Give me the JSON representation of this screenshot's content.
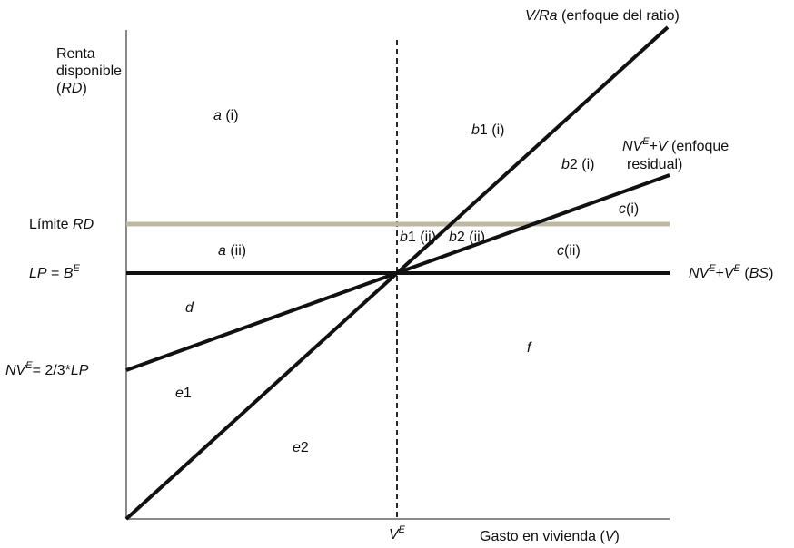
{
  "axes": {
    "y_title_line1": "Renta",
    "y_title_line2": "disponible",
    "y_title_line3_open": "(",
    "y_title_line3_var": "RD",
    "y_title_line3_close": ")",
    "x_title_text": "Gasto en vivienda (",
    "x_title_var": "V",
    "x_title_close": ")",
    "x_mark_var": "V",
    "x_mark_sup": "E"
  },
  "horizontal_labels": {
    "limite_text": "Límite ",
    "limite_var": "RD",
    "lp_var": "LP",
    "lp_eq": " = ",
    "lp_b": "B",
    "lp_sup": "E",
    "nve_var": "NV",
    "nve_sup": "E",
    "nve_rest_eq": "= 2/3*",
    "nve_rest_var": "LP"
  },
  "line_labels": {
    "ratio_var": "V/Ra",
    "ratio_text": " (enfoque del ratio)",
    "residual_nv": "NV",
    "residual_nv_sup": "E",
    "residual_plus": "+",
    "residual_v": "V",
    "residual_text1": " (enfoque",
    "residual_text2": "residual)",
    "bs_nv": "NV",
    "bs_nv_sup": "E",
    "bs_plus": "+",
    "bs_v": "V",
    "bs_v_sup": "E",
    "bs_open": " (",
    "bs_var": "BS",
    "bs_close": ")"
  },
  "regions": {
    "a_i_var": "a",
    "a_i_tag": " (i)",
    "a_ii_var": "a",
    "a_ii_tag": " (ii)",
    "b1_i_var": "b",
    "b1_i_tag": "1 (i)",
    "b2_i_var": "b",
    "b2_i_tag": "2 (i)",
    "c_i_var": "c",
    "c_i_tag": "(i)",
    "b1_ii_var": "b",
    "b1_ii_tag": "1 (ii)",
    "b2_ii_var": "b",
    "b2_ii_tag": "2 (ii)",
    "c_ii_var": "c",
    "c_ii_tag": "(ii)",
    "d_var": "d",
    "e1_var": "e",
    "e1_tag": "1",
    "e2_var": "e",
    "e2_tag": "2",
    "f_var": "f"
  },
  "colors": {
    "axis": "#8a8a8a",
    "line": "#111111",
    "limit_line": "#bdb8a2"
  }
}
